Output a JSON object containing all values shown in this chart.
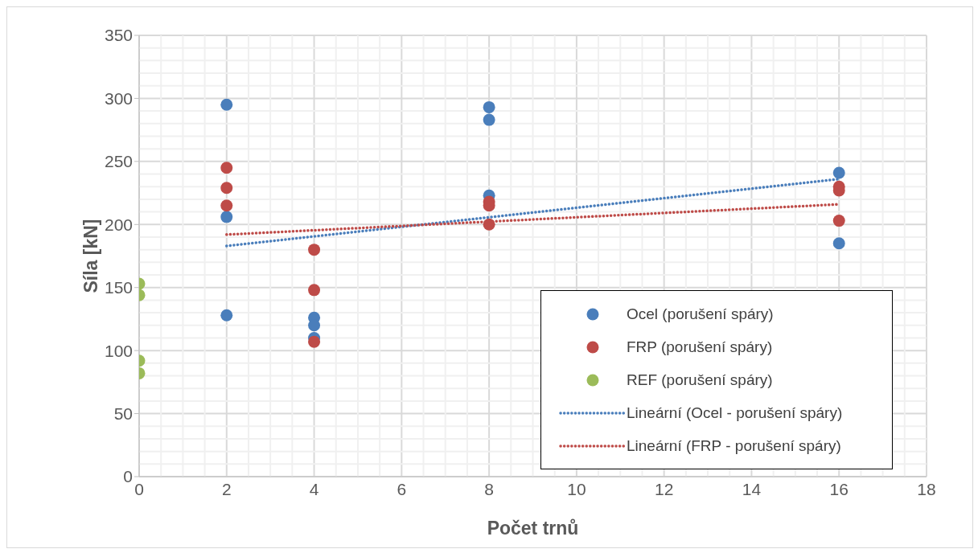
{
  "chart_data": {
    "type": "scatter",
    "xlabel": "Počet trnů",
    "ylabel": "Síla  [kN]",
    "xlim": [
      0,
      18
    ],
    "xticks": [
      0,
      2,
      4,
      6,
      8,
      10,
      12,
      14,
      16,
      18
    ],
    "ylim": [
      0,
      350
    ],
    "yticks": [
      0,
      50,
      100,
      150,
      200,
      250,
      300,
      350
    ],
    "grid": true,
    "legend": "bottom right",
    "marker": "circle",
    "series": [
      {
        "name": "Ocel (porušení spáry)",
        "color": "#4a7ebb",
        "x": [
          2,
          2,
          2,
          4,
          4,
          4,
          8,
          8,
          8,
          16,
          16
        ],
        "values": [
          295,
          206,
          128,
          126,
          120,
          110,
          293,
          283,
          223,
          241,
          185
        ]
      },
      {
        "name": "FRP (porušení spáry)",
        "color": "#be4b48",
        "x": [
          2,
          2,
          2,
          4,
          4,
          4,
          8,
          8,
          8,
          16,
          16,
          16
        ],
        "values": [
          245,
          229,
          215,
          180,
          148,
          107,
          218,
          215,
          200,
          230,
          227,
          203
        ]
      },
      {
        "name": "REF (porušení spáry)",
        "color": "#9bbb59",
        "x": [
          0,
          0,
          0,
          0
        ],
        "values": [
          153,
          144,
          92,
          82
        ]
      },
      {
        "name": "Lineární (Ocel - porušení spáry)",
        "type": "line",
        "marker": "none",
        "line_style": "dotted",
        "color": "#4a7ebb",
        "x": [
          2,
          16
        ],
        "values": [
          183,
          236
        ]
      },
      {
        "name": "Lineární (FRP - porušení spáry)",
        "type": "line",
        "marker": "none",
        "line_style": "dotted",
        "color": "#be4b48",
        "x": [
          2,
          16
        ],
        "values": [
          192,
          216
        ]
      }
    ]
  }
}
